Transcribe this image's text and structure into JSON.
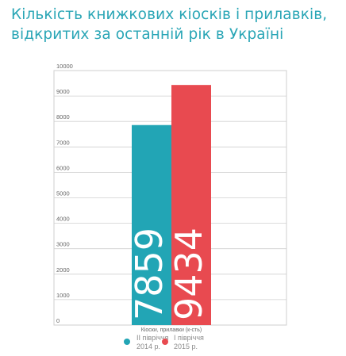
{
  "title_lines": [
    "Кількість книжкових кіосків і прилавків,",
    "відкритих за останній рік в Україні"
  ],
  "colors": {
    "title": "#2aa6b6",
    "series1": "#22a5b5",
    "series2": "#e84a50",
    "grid": "#cfcfcf"
  },
  "chart_data": {
    "type": "bar",
    "xlabel": "Кіоски, прилавки (к-сть)",
    "ylim": [
      0,
      10000
    ],
    "yticks": [
      0,
      1000,
      2000,
      3000,
      4000,
      5000,
      6000,
      7000,
      8000,
      9000,
      10000
    ],
    "grid": true,
    "legend_position": "bottom-center",
    "series": [
      {
        "name": "II півріччя 2014 р.",
        "name_lines": [
          "II півріччя",
          "2014 р."
        ],
        "value": 7859,
        "label": "7859",
        "color": "#22a5b5"
      },
      {
        "name": "I півріччя 2015 р.",
        "name_lines": [
          "I півріччя",
          "2015 р."
        ],
        "value": 9434,
        "label": "9434",
        "color": "#e84a50"
      }
    ]
  }
}
